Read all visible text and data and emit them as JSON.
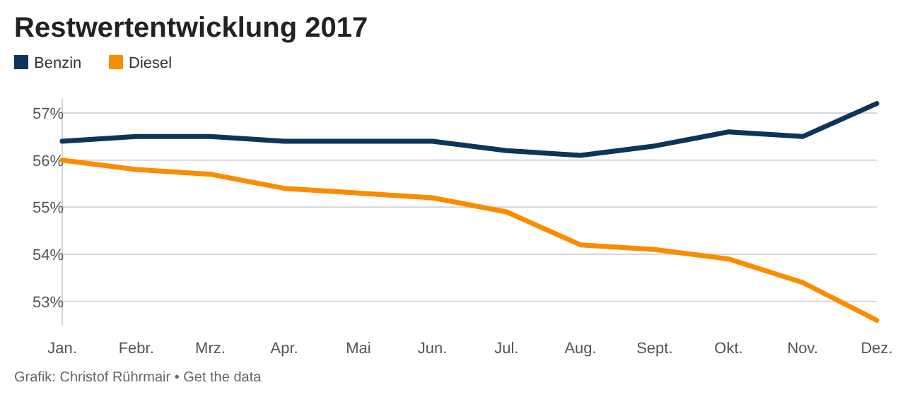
{
  "chart_data": {
    "type": "line",
    "title": "Restwertentwicklung 2017",
    "categories": [
      "Jan.",
      "Febr.",
      "Mrz.",
      "Apr.",
      "Mai",
      "Jun.",
      "Jul.",
      "Aug.",
      "Sept.",
      "Okt.",
      "Nov.",
      "Dez."
    ],
    "series": [
      {
        "name": "Benzin",
        "color": "#0c3559",
        "values": [
          56.4,
          56.5,
          56.5,
          56.4,
          56.4,
          56.4,
          56.2,
          56.1,
          56.3,
          56.6,
          56.5,
          57.2
        ]
      },
      {
        "name": "Diesel",
        "color": "#fa8c00",
        "values": [
          56.0,
          55.8,
          55.7,
          55.4,
          55.3,
          55.2,
          54.9,
          54.2,
          54.1,
          53.9,
          53.4,
          52.6
        ]
      }
    ],
    "ylim": [
      52.5,
      57.3
    ],
    "yticks": [
      {
        "value": 53,
        "label": "53%"
      },
      {
        "value": 54,
        "label": "54%"
      },
      {
        "value": 55,
        "label": "55%"
      },
      {
        "value": 56,
        "label": "56%"
      },
      {
        "value": 57,
        "label": "57%"
      }
    ],
    "grid": "y",
    "legend": "top left",
    "marker": "none",
    "line_style": "solid",
    "annotations": [
      "Grafik: Christof Rührmair • Get the data"
    ]
  }
}
